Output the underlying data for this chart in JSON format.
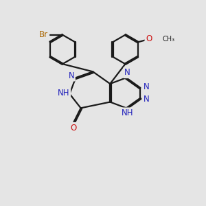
{
  "bg_color": "#e5e5e5",
  "bond_color": "#1a1a1a",
  "N_color": "#2222bb",
  "O_color": "#cc1111",
  "Br_color": "#aa6600",
  "lw": 1.6,
  "dbo": 0.032,
  "xlim": [
    0,
    10
  ],
  "ylim": [
    0,
    10
  ],
  "figsize": [
    3.0,
    3.0
  ],
  "dpi": 100
}
